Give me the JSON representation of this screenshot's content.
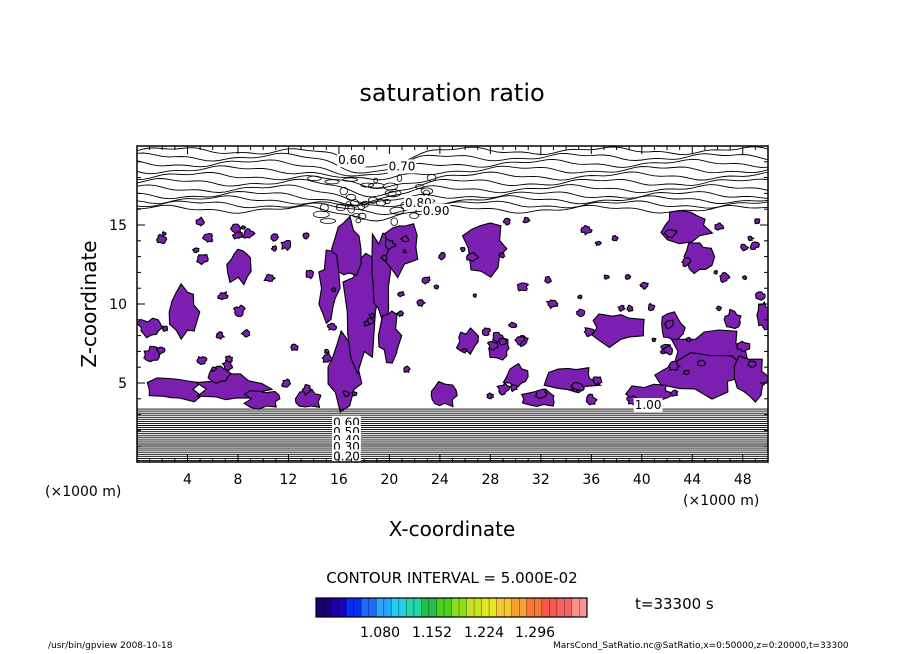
{
  "chart_data": {
    "type": "contour",
    "title": "saturation ratio",
    "xlabel": "X-coordinate",
    "ylabel": "Z-coordinate",
    "x_unit": "(×1000 m)",
    "z_unit": "(×1000 m)",
    "x_ticks": [
      "4",
      "8",
      "12",
      "16",
      "20",
      "24",
      "28",
      "32",
      "36",
      "40",
      "44",
      "48"
    ],
    "z_ticks": [
      "5",
      "10",
      "15"
    ],
    "xlim": [
      0,
      50
    ],
    "zlim": [
      0,
      20
    ],
    "contour_interval_text": "CONTOUR INTERVAL = 5.000E-02",
    "contour_labels": [
      {
        "text": "0.60",
        "x": 17.0,
        "z": 19.1
      },
      {
        "text": "0.70",
        "x": 21.0,
        "z": 18.7
      },
      {
        "text": "0.80",
        "x": 22.3,
        "z": 16.4
      },
      {
        "text": "0.90",
        "x": 23.7,
        "z": 15.9
      },
      {
        "text": "0.60",
        "x": 16.6,
        "z": 2.5
      },
      {
        "text": "0.50",
        "x": 16.6,
        "z": 1.9
      },
      {
        "text": "0.40",
        "x": 16.6,
        "z": 1.4
      },
      {
        "text": "0.30",
        "x": 16.6,
        "z": 0.95
      },
      {
        "text": "0.20",
        "x": 16.6,
        "z": 0.35
      },
      {
        "text": "1.00",
        "x": 40.5,
        "z": 3.6
      }
    ],
    "filled_region_color": "#7b1fb0",
    "colorbar": {
      "tick_labels": [
        "1.080",
        "1.152",
        "1.224",
        "1.296"
      ],
      "colors": [
        "#1a0070",
        "#1a00b8",
        "#0a2cf0",
        "#1e6cf8",
        "#2aa4ff",
        "#22d0ee",
        "#22d8a6",
        "#24c04e",
        "#4cd020",
        "#8ae01e",
        "#c4e820",
        "#e8e428",
        "#f8c830",
        "#f8a032",
        "#f87838",
        "#f85848",
        "#f86464",
        "#f89494"
      ]
    },
    "time_label": "t=33300 s"
  },
  "footer": {
    "left": "/usr/bin/gpview  2008-10-18",
    "right": "MarsCond_SatRatio.nc@SatRatio,x=0:50000,z=0:20000,t=33300"
  }
}
